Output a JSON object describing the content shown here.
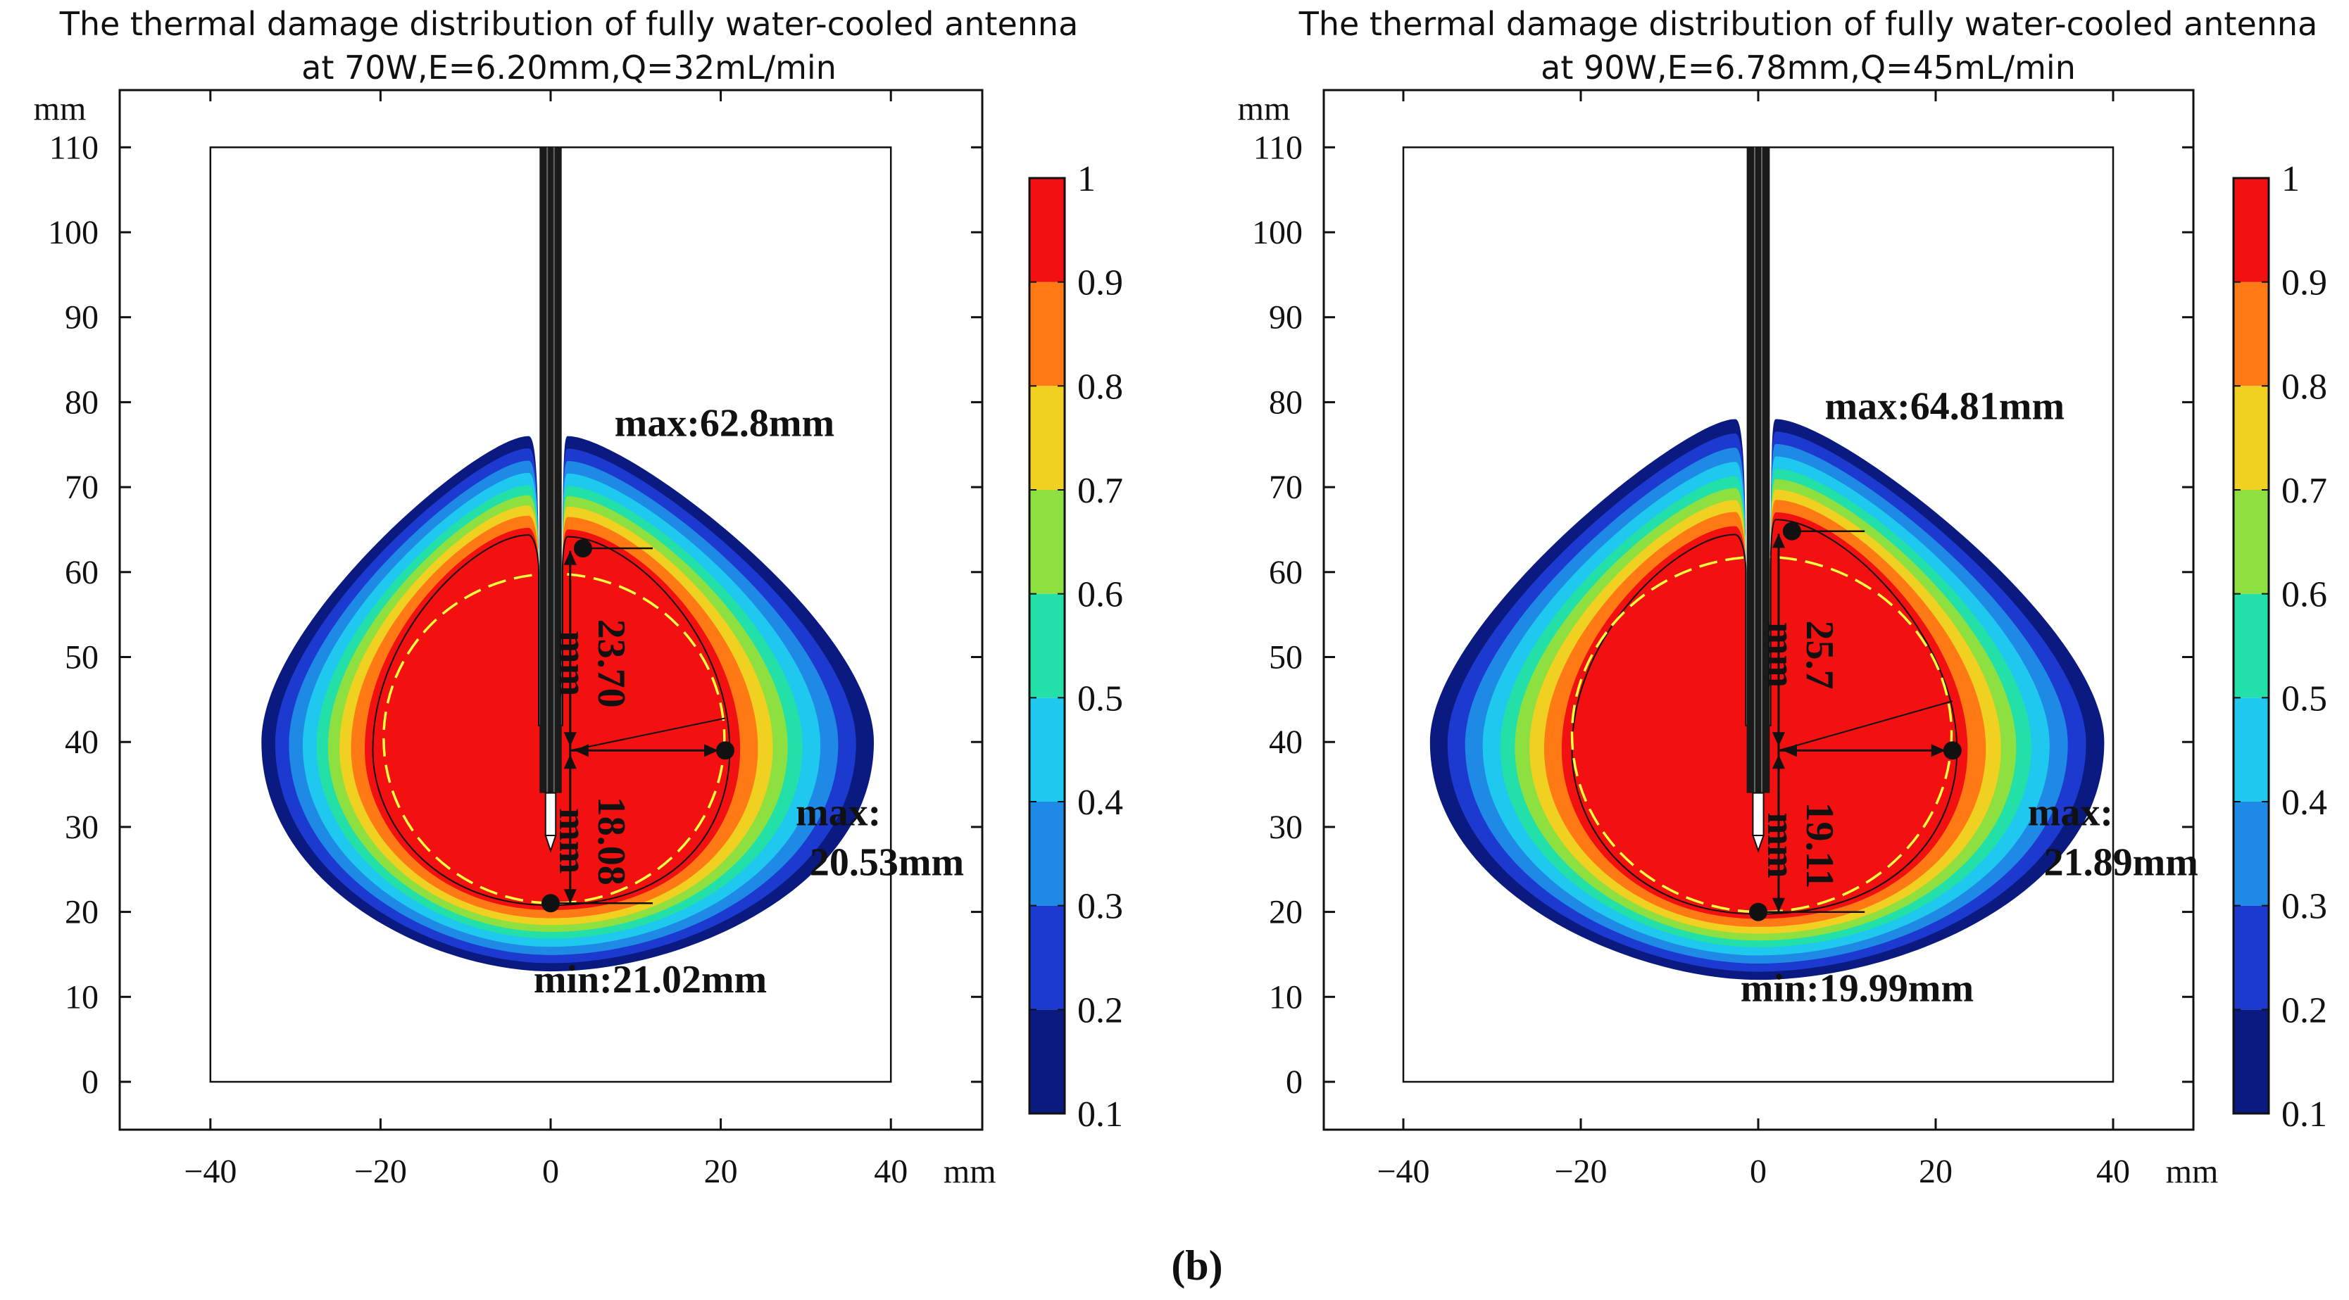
{
  "figure_caption": "(b)",
  "unit_label": "mm",
  "colorbar_levels": [
    0.1,
    0.2,
    0.3,
    0.4,
    0.5,
    0.6,
    0.7,
    0.8,
    0.9,
    1.0
  ],
  "colorbar_tick_labels": [
    "0.1",
    "0.2",
    "0.3",
    "0.4",
    "0.5",
    "0.6",
    "0.7",
    "0.8",
    "0.9",
    "1"
  ],
  "colors": {
    "band_1": "#0a1a80",
    "band_2": "#1c3ad0",
    "band_3": "#1e8ae6",
    "band_4": "#1ec8ee",
    "band_5": "#22e0a8",
    "band_6": "#8ee040",
    "band_7": "#f0d020",
    "band_8": "#ff7a14",
    "band_9": "#f21010",
    "antenna": "#1a1a1a",
    "ellipse_dashed": "#ffff40"
  },
  "chart_data": [
    {
      "type": "heatmap",
      "title": "The thermal damage distribution of fully water-cooled antenna",
      "subtitle": "at 70W,E=6.20mm,Q=32mL/min",
      "xlabel": "mm",
      "ylabel": "mm",
      "xlim": [
        -50,
        50
      ],
      "ylim": [
        -5,
        115
      ],
      "xticks": [
        -40,
        -20,
        0,
        20,
        40
      ],
      "yticks": [
        0,
        10,
        20,
        30,
        40,
        50,
        60,
        70,
        80,
        90,
        100,
        110
      ],
      "xtick_labels": [
        "−40",
        "−20",
        "0",
        "20",
        "40"
      ],
      "ytick_labels": [
        "0",
        "10",
        "20",
        "30",
        "40",
        "50",
        "60",
        "70",
        "80",
        "90",
        "100",
        "110"
      ],
      "domain_box": {
        "x": [
          -40,
          40
        ],
        "y": [
          0,
          110
        ]
      },
      "antenna_tip": {
        "x": 0,
        "y": 28
      },
      "lesion": {
        "max_y": 62.8,
        "min_y": 21.02,
        "center_y": 39,
        "radial_x": 20.53
      },
      "outer_zone": {
        "bottom_y": 13,
        "left_x": -34,
        "right_x": 38,
        "lobe_top_y": 76
      },
      "measurements": {
        "upper_length": "23.70",
        "lower_length": "18.08",
        "unit": "mm"
      },
      "annotations": {
        "max_tip": "max:62.8mm",
        "max_radial_line1": "max:",
        "max_radial_line2": "20.53mm",
        "min_tip": "min:21.02mm"
      }
    },
    {
      "type": "heatmap",
      "title": "The thermal damage distribution of fully water-cooled antenna",
      "subtitle": "at 90W,E=6.78mm,Q=45mL/min",
      "xlabel": "mm",
      "ylabel": "mm",
      "xlim": [
        -50,
        50
      ],
      "ylim": [
        -5,
        115
      ],
      "xticks": [
        -40,
        -20,
        0,
        20,
        40
      ],
      "yticks": [
        0,
        10,
        20,
        30,
        40,
        50,
        60,
        70,
        80,
        90,
        100,
        110
      ],
      "xtick_labels": [
        "−40",
        "−20",
        "0",
        "20",
        "40"
      ],
      "ytick_labels": [
        "0",
        "10",
        "20",
        "30",
        "40",
        "50",
        "60",
        "70",
        "80",
        "90",
        "100",
        "110"
      ],
      "domain_box": {
        "x": [
          -40,
          40
        ],
        "y": [
          0,
          110
        ]
      },
      "antenna_tip": {
        "x": 0,
        "y": 28
      },
      "lesion": {
        "max_y": 64.81,
        "min_y": 19.99,
        "center_y": 39,
        "radial_x": 21.89
      },
      "outer_zone": {
        "bottom_y": 12,
        "left_x": -37,
        "right_x": 39,
        "lobe_top_y": 78
      },
      "measurements": {
        "upper_length": "25.7",
        "lower_length": "19.11",
        "unit": "mm"
      },
      "annotations": {
        "max_tip": "max:64.81mm",
        "max_radial_line1": "max:",
        "max_radial_line2": "21.89mm",
        "min_tip": "min:19.99mm"
      }
    }
  ]
}
